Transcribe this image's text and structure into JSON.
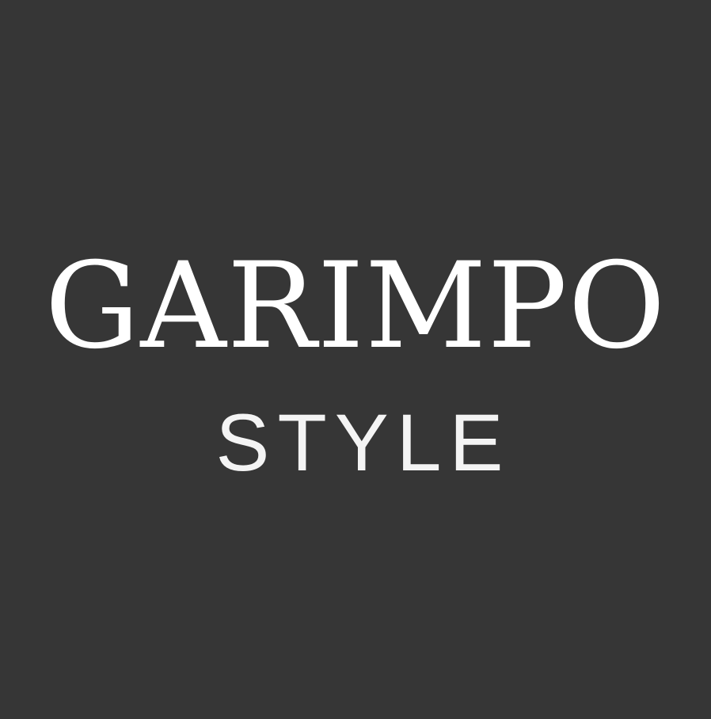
{
  "logo": {
    "primary_text": "GARIMPO",
    "secondary_text": "STYLE"
  },
  "colors": {
    "background": "#363636",
    "primary_text": "#ffffff",
    "secondary_text": "#f4f4f4"
  }
}
